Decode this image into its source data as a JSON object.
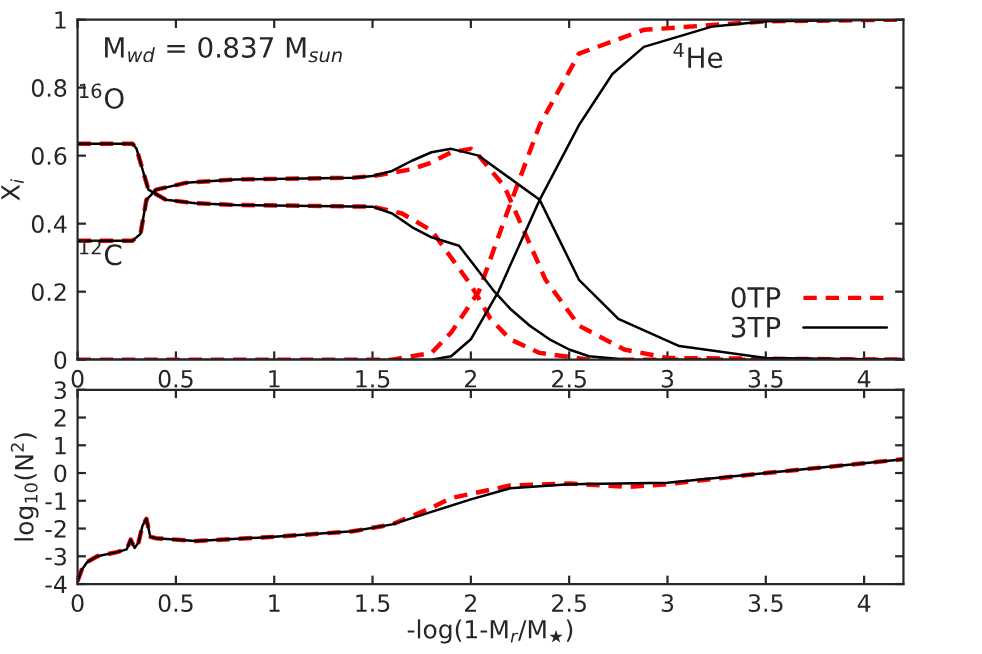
{
  "chart_data": [
    {
      "type": "line",
      "ylabel": "X$_{i}$",
      "xlim": [
        0,
        4.2
      ],
      "ylim": [
        0,
        1
      ],
      "xticks": [
        0,
        0.5,
        1,
        1.5,
        2,
        2.5,
        3,
        3.5,
        4
      ],
      "yticks": [
        0,
        0.2,
        0.4,
        0.6,
        0.8,
        1
      ],
      "legend": "bottom right",
      "grid": false,
      "annotations": [
        "M$_{wd}$ = 0.837 M$_{sun}$",
        "$^{16}$O",
        "$^{12}$C",
        "$^{4}$He"
      ],
      "series": [
        {
          "name": "0TP",
          "color": "#ff0000",
          "line_style": "dashed",
          "x": [
            0,
            0.28,
            0.3,
            0.33,
            0.36,
            0.45,
            0.6,
            0.8,
            1.5,
            1.65,
            1.8,
            1.9,
            2.0,
            2.1,
            2.2,
            2.35,
            2.6,
            3.0,
            4.2
          ],
          "values": [
            0.635,
            0.635,
            0.62,
            0.56,
            0.5,
            0.47,
            0.46,
            0.455,
            0.45,
            0.43,
            0.38,
            0.3,
            0.22,
            0.12,
            0.06,
            0.02,
            0,
            0,
            0
          ]
        },
        {
          "color": "#ff0000",
          "line_style": "dashed",
          "x": [
            0,
            0.28,
            0.32,
            0.35,
            0.4,
            0.55,
            0.8,
            1.4,
            1.5,
            1.7,
            1.8,
            1.9,
            2.0,
            2.04,
            2.17,
            2.38,
            2.55,
            2.78,
            3.0,
            4.2
          ],
          "values": [
            0.35,
            0.35,
            0.37,
            0.47,
            0.5,
            0.52,
            0.53,
            0.535,
            0.54,
            0.56,
            0.58,
            0.61,
            0.62,
            0.6,
            0.51,
            0.235,
            0.1,
            0.03,
            0.005,
            0
          ]
        },
        {
          "color": "#ff0000",
          "line_style": "dashed",
          "x": [
            0,
            1.6,
            1.8,
            1.9,
            2.04,
            2.17,
            2.35,
            2.55,
            2.88,
            3.5,
            4.2
          ],
          "values": [
            0,
            0,
            0.02,
            0.08,
            0.2,
            0.41,
            0.69,
            0.9,
            0.97,
            0.995,
            1
          ]
        },
        {
          "name": "3TP",
          "color": "#000000",
          "line_style": "solid",
          "x": [
            0,
            0.28,
            0.3,
            0.33,
            0.36,
            0.45,
            0.6,
            0.8,
            1.5,
            1.6,
            1.7,
            1.8,
            1.94,
            2.0,
            2.12,
            2.2,
            2.3,
            2.4,
            2.5,
            2.6,
            2.8,
            4.2
          ],
          "values": [
            0.635,
            0.635,
            0.62,
            0.56,
            0.5,
            0.47,
            0.46,
            0.455,
            0.45,
            0.43,
            0.39,
            0.36,
            0.335,
            0.29,
            0.2,
            0.15,
            0.1,
            0.06,
            0.03,
            0.01,
            0,
            0
          ]
        },
        {
          "color": "#000000",
          "line_style": "solid",
          "x": [
            0,
            0.28,
            0.32,
            0.35,
            0.4,
            0.55,
            0.8,
            1.4,
            1.5,
            1.6,
            1.7,
            1.8,
            1.9,
            2.04,
            2.35,
            2.55,
            2.75,
            3.06,
            3.5,
            4.2
          ],
          "values": [
            0.35,
            0.35,
            0.37,
            0.47,
            0.5,
            0.52,
            0.53,
            0.535,
            0.54,
            0.555,
            0.585,
            0.61,
            0.62,
            0.6,
            0.47,
            0.235,
            0.12,
            0.04,
            0.005,
            0
          ]
        },
        {
          "color": "#000000",
          "line_style": "solid",
          "x": [
            0,
            1.8,
            1.9,
            2.0,
            2.14,
            2.35,
            2.55,
            2.72,
            2.88,
            3.23,
            3.5,
            4.2
          ],
          "values": [
            0,
            0,
            0.01,
            0.06,
            0.2,
            0.47,
            0.69,
            0.84,
            0.92,
            0.98,
            0.995,
            1
          ]
        }
      ]
    },
    {
      "type": "line",
      "xlabel": "-log(1-M$_{r}$/M$_{★}$)",
      "ylabel": "log$_{10}$(N$^{2}$)",
      "xlim": [
        0,
        4.2
      ],
      "ylim": [
        -4,
        3
      ],
      "xticks": [
        0,
        0.5,
        1,
        1.5,
        2,
        2.5,
        3,
        3.5,
        4
      ],
      "yticks": [
        -4,
        -3,
        -2,
        -1,
        0,
        1,
        2,
        3
      ],
      "grid": false,
      "series": [
        {
          "color": "#ff0000",
          "line_style": "dashed",
          "x": [
            0,
            0.02,
            0.05,
            0.1,
            0.2,
            0.25,
            0.27,
            0.29,
            0.31,
            0.33,
            0.35,
            0.37,
            0.4,
            0.6,
            1.0,
            1.4,
            1.6,
            1.8,
            1.9,
            2.0,
            2.2,
            2.5,
            2.8,
            3.0,
            3.5,
            4.0,
            4.2
          ],
          "values": [
            -3.9,
            -3.5,
            -3.2,
            -3.0,
            -2.85,
            -2.75,
            -2.4,
            -2.7,
            -2.5,
            -1.9,
            -1.65,
            -2.3,
            -2.35,
            -2.45,
            -2.3,
            -2.1,
            -1.85,
            -1.25,
            -0.9,
            -0.75,
            -0.45,
            -0.38,
            -0.5,
            -0.4,
            0.0,
            0.35,
            0.5
          ]
        },
        {
          "color": "#000000",
          "line_style": "solid",
          "x": [
            0,
            0.02,
            0.05,
            0.1,
            0.2,
            0.25,
            0.27,
            0.29,
            0.31,
            0.33,
            0.35,
            0.37,
            0.4,
            0.6,
            1.0,
            1.4,
            1.6,
            1.8,
            2.0,
            2.2,
            2.5,
            3.0,
            3.5,
            4.0,
            4.2
          ],
          "values": [
            -3.9,
            -3.5,
            -3.2,
            -3.0,
            -2.85,
            -2.75,
            -2.4,
            -2.7,
            -2.5,
            -1.9,
            -1.65,
            -2.3,
            -2.35,
            -2.45,
            -2.3,
            -2.1,
            -1.85,
            -1.4,
            -0.95,
            -0.55,
            -0.4,
            -0.35,
            0.0,
            0.35,
            0.5
          ]
        }
      ]
    }
  ]
}
